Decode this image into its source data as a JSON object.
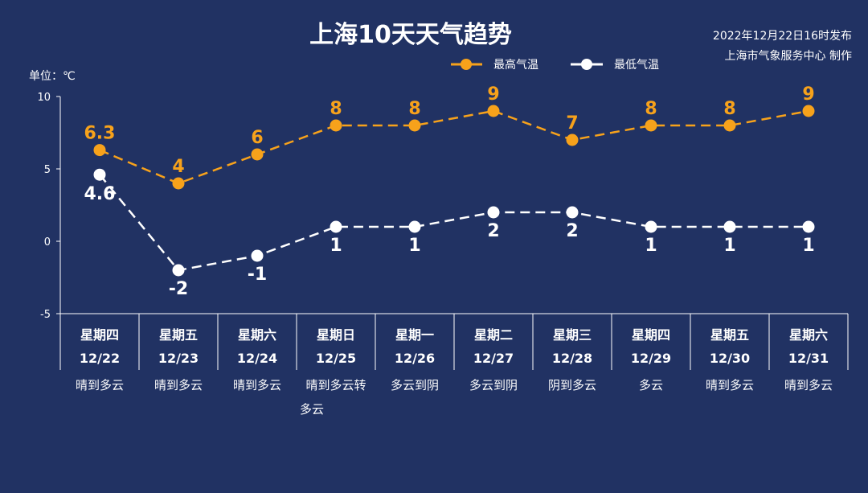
{
  "header": {
    "title": "上海10天天气趋势",
    "publish_time": "2022年12月22日16时发布",
    "publisher": "上海市气象服务中心 制作"
  },
  "unit_label": "单位：℃",
  "legend": {
    "high": "最高气温",
    "low": "最低气温"
  },
  "colors": {
    "background": "#213263",
    "high": "#f7a21b",
    "low": "#ffffff"
  },
  "chart_data": {
    "type": "line",
    "title": "上海10天天气趋势",
    "ylabel": "单位：℃",
    "ylim": [
      -5,
      10
    ],
    "yticks": [
      10,
      5,
      0,
      -5
    ],
    "categories": [
      {
        "day": "星期四",
        "date": "12/22",
        "weather": [
          "晴到多云"
        ]
      },
      {
        "day": "星期五",
        "date": "12/23",
        "weather": [
          "晴到多云"
        ]
      },
      {
        "day": "星期六",
        "date": "12/24",
        "weather": [
          "晴到多云"
        ]
      },
      {
        "day": "星期日",
        "date": "12/25",
        "weather": [
          "晴到多云转",
          "多云"
        ]
      },
      {
        "day": "星期一",
        "date": "12/26",
        "weather": [
          "多云到阴"
        ]
      },
      {
        "day": "星期二",
        "date": "12/27",
        "weather": [
          "多云到阴"
        ]
      },
      {
        "day": "星期三",
        "date": "12/28",
        "weather": [
          "阴到多云"
        ]
      },
      {
        "day": "星期四",
        "date": "12/29",
        "weather": [
          "多云"
        ]
      },
      {
        "day": "星期五",
        "date": "12/30",
        "weather": [
          "晴到多云"
        ]
      },
      {
        "day": "星期六",
        "date": "12/31",
        "weather": [
          "晴到多云"
        ]
      }
    ],
    "series": [
      {
        "name": "最高气温",
        "values": [
          6.3,
          4,
          6,
          8,
          8,
          9,
          7,
          8,
          8,
          9
        ],
        "labels": [
          "6.3",
          "4",
          "6",
          "8",
          "8",
          "9",
          "7",
          "8",
          "8",
          "9"
        ]
      },
      {
        "name": "最低气温",
        "values": [
          4.6,
          -2,
          -1,
          1,
          1,
          2,
          2,
          1,
          1,
          1
        ],
        "labels": [
          "4.6",
          "-2",
          "-1",
          "1",
          "1",
          "2",
          "2",
          "1",
          "1",
          "1"
        ]
      }
    ],
    "legend_position": "top-right",
    "grid": false
  }
}
